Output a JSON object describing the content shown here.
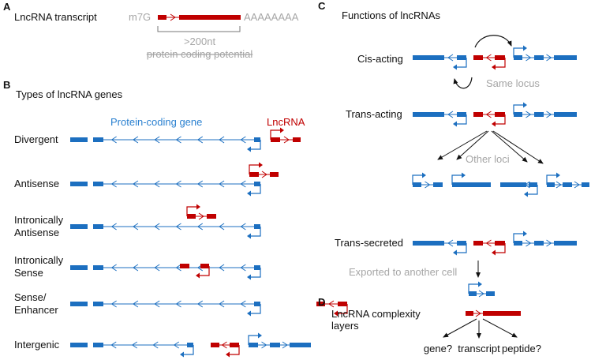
{
  "colors": {
    "protein_coding": "#1c6fc0",
    "lncrna": "#c00000",
    "annotation": "#a6a6a6",
    "arrow": "#111111"
  },
  "panel_a": {
    "letter": "A",
    "title": "LncRNA transcript",
    "cap": "m7G",
    "polya": "AAAAAAAA",
    "length": ">200nt",
    "coding": "protein coding potential"
  },
  "panel_b": {
    "letter": "B",
    "title": "Types of lncRNA genes",
    "protein_coding_label": "Protein-coding gene",
    "lncrna_label": "LncRNA",
    "rows": [
      {
        "line1": "Divergent",
        "line2": ""
      },
      {
        "line1": "Antisense",
        "line2": ""
      },
      {
        "line1": "Intronically",
        "line2": "Antisense"
      },
      {
        "line1": "Intronically",
        "line2": "Sense"
      },
      {
        "line1": "Sense/",
        "line2": "Enhancer"
      },
      {
        "line1": "Intergenic",
        "line2": ""
      }
    ]
  },
  "panel_c": {
    "letter": "C",
    "title": "Functions of lncRNAs",
    "cis": "Cis-acting",
    "same_locus": "Same locus",
    "trans": "Trans-acting",
    "other_loci": "Other loci",
    "secreted": "Trans-secreted",
    "exported": "Exported to another cell"
  },
  "panel_d": {
    "letter": "D",
    "title_line1": "LncRNA complexity",
    "title_line2": "layers",
    "outcomes": [
      "gene?",
      "transcript",
      "peptide?"
    ]
  }
}
